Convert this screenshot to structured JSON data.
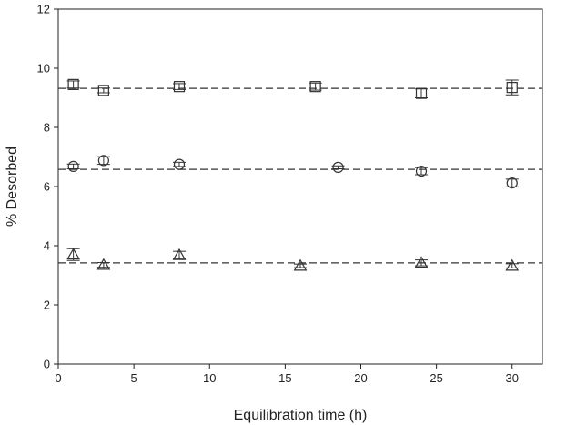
{
  "chart_data": {
    "type": "scatter",
    "title": "",
    "xlabel": "Equilibration time (h)",
    "ylabel": "% Desorbed",
    "xlim": [
      0,
      32
    ],
    "ylim": [
      0,
      12
    ],
    "xticks": [
      0,
      5,
      10,
      15,
      20,
      25,
      30
    ],
    "yticks": [
      0,
      2,
      4,
      6,
      8,
      10,
      12
    ],
    "grid": false,
    "legend": "none",
    "colors": {
      "marker": "#333333",
      "axis": "#222222",
      "reference_line": "#333333"
    },
    "series": [
      {
        "marker": "square",
        "reference_line": 9.32,
        "points": [
          {
            "x": 1,
            "y": 9.45,
            "err": 0.12
          },
          {
            "x": 3,
            "y": 9.25,
            "err": 0.08
          },
          {
            "x": 8,
            "y": 9.38,
            "err": 0.1
          },
          {
            "x": 17,
            "y": 9.38,
            "err": 0.12
          },
          {
            "x": 24,
            "y": 9.15,
            "err": 0.15
          },
          {
            "x": 30,
            "y": 9.35,
            "err": 0.25
          }
        ]
      },
      {
        "marker": "circle",
        "reference_line": 6.58,
        "points": [
          {
            "x": 1,
            "y": 6.68,
            "err": 0.08
          },
          {
            "x": 3,
            "y": 6.88,
            "err": 0.13
          },
          {
            "x": 8,
            "y": 6.75,
            "err": 0.07
          },
          {
            "x": 18.5,
            "y": 6.65,
            "err": 0.05
          },
          {
            "x": 24,
            "y": 6.52,
            "err": 0.12
          },
          {
            "x": 30,
            "y": 6.12,
            "err": 0.13
          }
        ]
      },
      {
        "marker": "triangle",
        "reference_line": 3.42,
        "points": [
          {
            "x": 1,
            "y": 3.7,
            "err": 0.2
          },
          {
            "x": 3,
            "y": 3.35,
            "err": 0.08
          },
          {
            "x": 8,
            "y": 3.68,
            "err": 0.13
          },
          {
            "x": 16,
            "y": 3.32,
            "err": 0.06
          },
          {
            "x": 24,
            "y": 3.42,
            "err": 0.1
          },
          {
            "x": 30,
            "y": 3.32,
            "err": 0.07
          }
        ]
      }
    ]
  }
}
